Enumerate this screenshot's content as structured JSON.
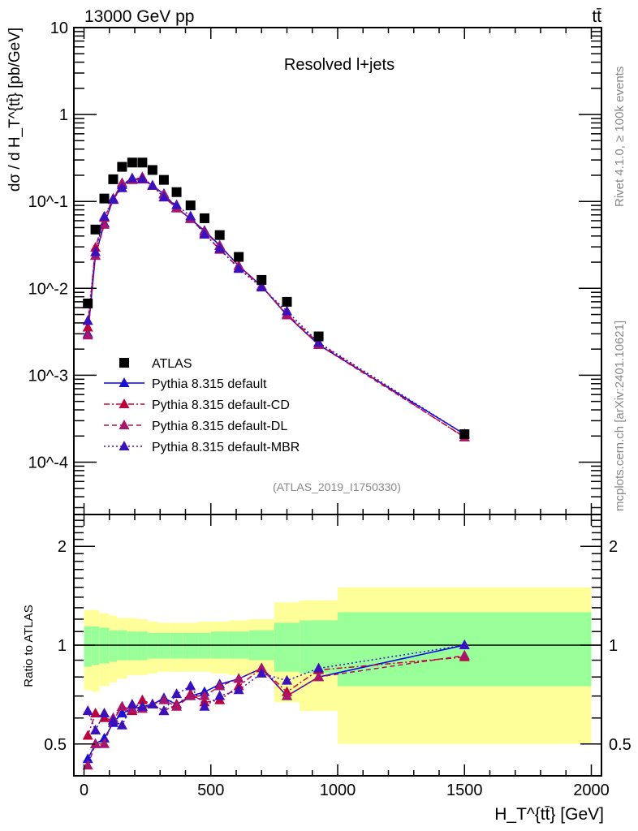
{
  "chart_data": {
    "type": "line",
    "header_left": "13000 GeV pp",
    "header_right": "tt̄",
    "title": "Resolved l+jets",
    "side_label_top": "Rivet 4.1.0, ≥ 100k events",
    "side_label_bottom": "mcplots.cern.ch [arXiv:2401.10621]",
    "analysis_label": "(ATLAS_2019_I1750330)",
    "ylabel": "dσ / d H_T^{tt̄} [pb/GeV]",
    "ratio_ylabel": "Ratio to ATLAS",
    "xlabel": "H_T^{tt̄} [GeV]",
    "xlim": [
      -40,
      2040
    ],
    "ylim": [
      2.5e-05,
      10
    ],
    "yscale": "log",
    "ratio_ylim": [
      0.4,
      2.5
    ],
    "ratio_yscale": "log",
    "x_ticks": [
      "0",
      "500",
      "1000",
      "1500",
      "2000"
    ],
    "y_ticks": [
      "10",
      "1",
      "10^-1",
      "10^-2",
      "10^-3",
      "10^-4"
    ],
    "ratio_ticks": [
      "0.5",
      "1",
      "2"
    ],
    "legend_position": "bottom-left",
    "bin_edges": [
      0,
      30,
      60,
      100,
      130,
      170,
      210,
      250,
      290,
      340,
      390,
      450,
      500,
      570,
      650,
      750,
      850,
      1000,
      2000
    ],
    "x": [
      15,
      45,
      80,
      115,
      150,
      190,
      230,
      270,
      315,
      365,
      420,
      475,
      535,
      610,
      700,
      800,
      925,
      1500
    ],
    "atlas": {
      "name": "ATLAS",
      "color": "#000000",
      "values": [
        0.0067,
        0.0475,
        0.108,
        0.18,
        0.25,
        0.28,
        0.28,
        0.23,
        0.177,
        0.128,
        0.09,
        0.064,
        0.041,
        0.023,
        0.0125,
        0.007,
        0.0028,
        0.00021
      ]
    },
    "uncertainty_bands": {
      "green_upper": [
        1.14,
        1.14,
        1.13,
        1.11,
        1.11,
        1.1,
        1.1,
        1.09,
        1.09,
        1.09,
        1.09,
        1.09,
        1.1,
        1.1,
        1.11,
        1.17,
        1.19,
        1.26
      ],
      "green_lower": [
        0.86,
        0.87,
        0.88,
        0.89,
        0.9,
        0.9,
        0.9,
        0.91,
        0.91,
        0.91,
        0.91,
        0.91,
        0.91,
        0.91,
        0.9,
        0.83,
        0.82,
        0.75
      ],
      "yellow_upper": [
        1.28,
        1.28,
        1.25,
        1.23,
        1.21,
        1.21,
        1.2,
        1.18,
        1.17,
        1.17,
        1.17,
        1.18,
        1.18,
        1.19,
        1.2,
        1.35,
        1.37,
        1.5
      ],
      "yellow_lower": [
        0.73,
        0.72,
        0.75,
        0.77,
        0.79,
        0.81,
        0.81,
        0.82,
        0.83,
        0.83,
        0.83,
        0.83,
        0.82,
        0.81,
        0.81,
        0.67,
        0.63,
        0.5
      ],
      "green_color": "#99ff99",
      "yellow_color": "#ffff99"
    },
    "series": [
      {
        "name": "Pythia 8.315 default",
        "color": "#0000ee",
        "marker_color": "#1a10d8",
        "dash": "",
        "ratio": [
          0.45,
          0.5,
          0.52,
          0.58,
          0.62,
          0.64,
          0.65,
          0.66,
          0.69,
          0.66,
          0.7,
          0.72,
          0.76,
          0.79,
          0.85,
          0.7,
          0.8,
          1.0
        ]
      },
      {
        "name": "Pythia 8.315 default-CD",
        "color": "#cc0033",
        "marker_color": "#c0003a",
        "dash": "7 3 2 3",
        "ratio": [
          0.53,
          0.62,
          0.6,
          0.59,
          0.65,
          0.63,
          0.68,
          0.66,
          0.63,
          0.66,
          0.71,
          0.67,
          0.68,
          0.75,
          0.85,
          0.72,
          0.84,
          0.92
        ]
      },
      {
        "name": "Pythia 8.315 default-DL",
        "color": "#b0105a",
        "marker_color": "#a8156a",
        "dash": "6 4",
        "ratio": [
          0.43,
          0.5,
          0.5,
          0.6,
          0.65,
          0.64,
          0.64,
          0.66,
          0.68,
          0.65,
          0.7,
          0.7,
          0.75,
          0.79,
          0.85,
          0.7,
          0.8,
          0.93
        ]
      },
      {
        "name": "Pythia 8.315 default-MBR",
        "color": "#3311cc",
        "marker_color": "#3a10c0",
        "dash": "2 3",
        "ratio": [
          0.63,
          0.55,
          0.62,
          0.59,
          0.57,
          0.66,
          0.65,
          0.66,
          0.63,
          0.71,
          0.75,
          0.65,
          0.7,
          0.73,
          0.82,
          0.78,
          0.85,
          1.0
        ]
      }
    ]
  }
}
